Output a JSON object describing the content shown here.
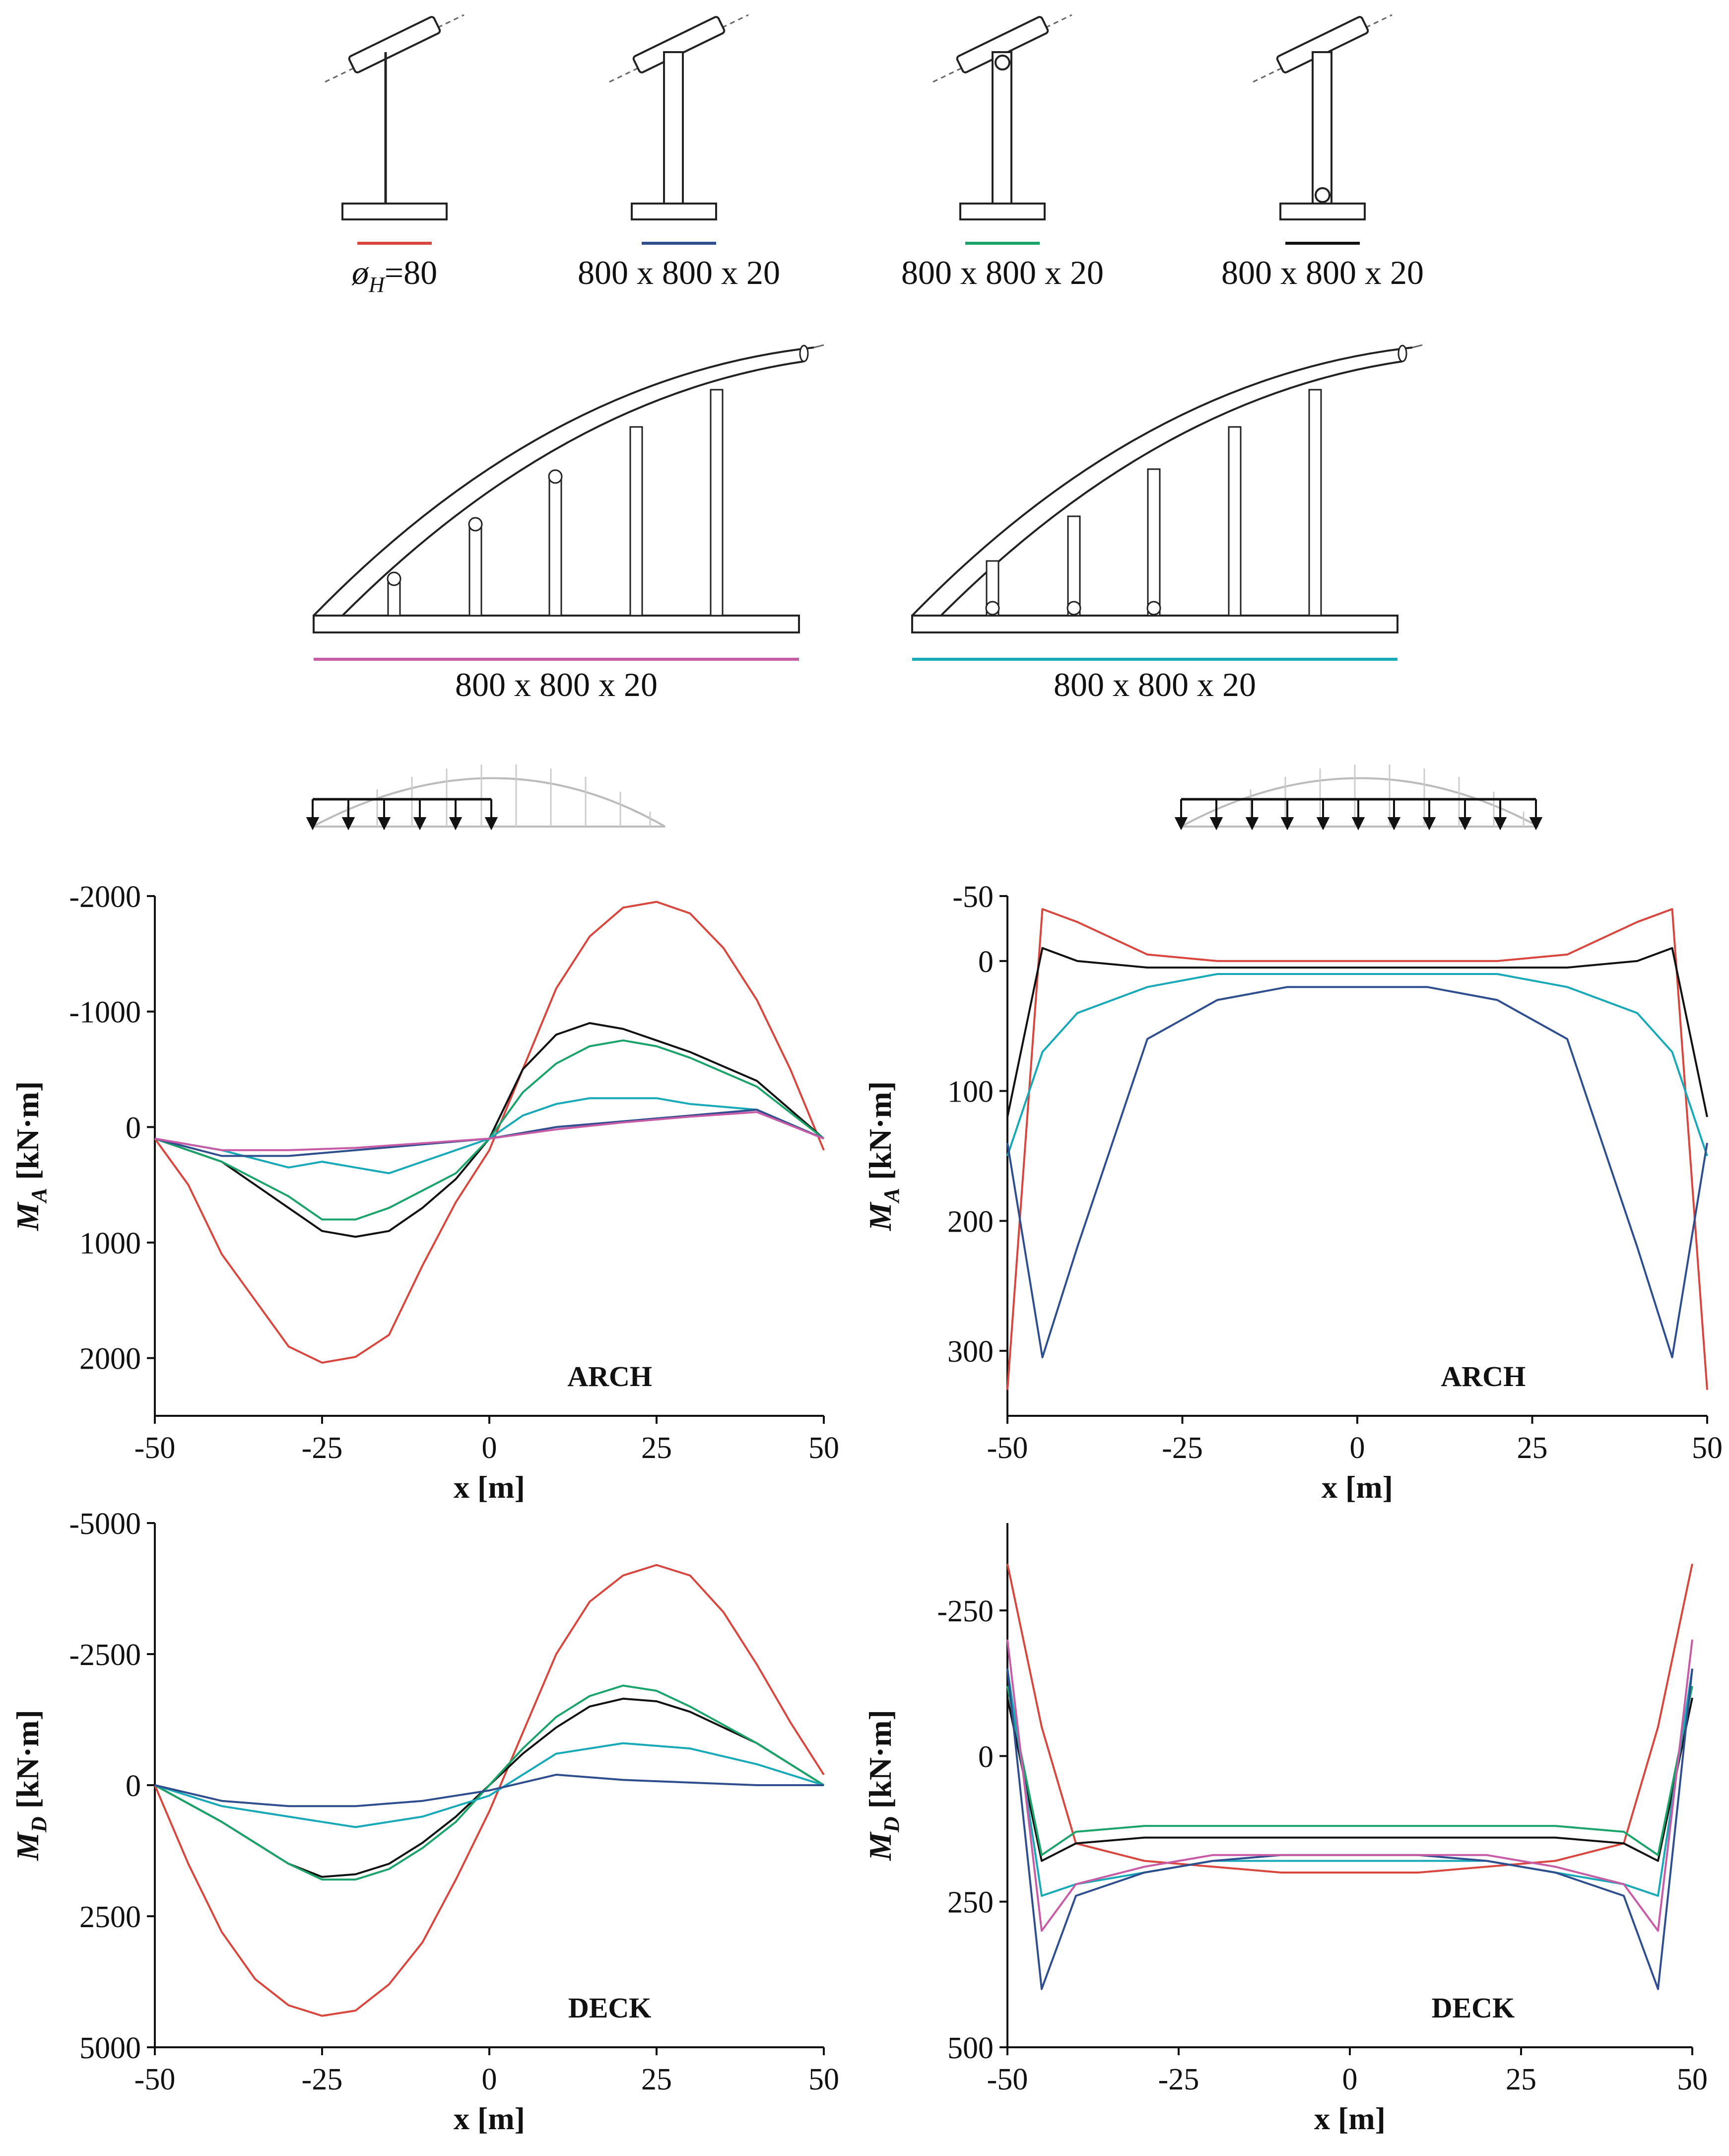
{
  "figure": {
    "configs": [
      {
        "id": "red",
        "label": "ø_H=80",
        "sub_prefix": "ø",
        "sub_letter": "H",
        "sub_rest": "=80",
        "color": "#d9463e"
      },
      {
        "id": "navy",
        "label": "800 x 800 x 20",
        "color": "#2e4e8f"
      },
      {
        "id": "green",
        "label": "800 x 800 x 20",
        "color": "#1aa36a"
      },
      {
        "id": "black",
        "label": "800 x 800 x 20",
        "color": "#111111"
      },
      {
        "id": "magenta",
        "label": "800 x 800 x 20",
        "color": "#c75ba6"
      },
      {
        "id": "cyan",
        "label": "800 x 800 x 20",
        "color": "#18a9b8"
      }
    ],
    "load_left_label": "",
    "load_right_label": ""
  },
  "chart_data": [
    {
      "type": "line",
      "panel": "top-left",
      "title": "ARCH",
      "xlabel": "x [m]",
      "ylabel_main": "M",
      "ylabel_sub": "A",
      "ylabel_units": " [kN·m]",
      "xlim": [
        -50,
        50
      ],
      "ylim": [
        -2000,
        2500
      ],
      "y_inverted": true,
      "xticks": [
        -50,
        -25,
        0,
        25,
        50
      ],
      "yticks": [
        -2000,
        -1000,
        0,
        1000,
        2000
      ],
      "series": [
        {
          "name": "red",
          "x": [
            -50,
            -45,
            -40,
            -35,
            -30,
            -25,
            -20,
            -15,
            -10,
            -5,
            0,
            5,
            10,
            15,
            20,
            25,
            30,
            35,
            40,
            45,
            50
          ],
          "y": [
            100,
            500,
            1100,
            1500,
            1900,
            2040,
            1990,
            1800,
            1200,
            650,
            200,
            -500,
            -1200,
            -1650,
            -1900,
            -1950,
            -1850,
            -1550,
            -1100,
            -500,
            200
          ]
        },
        {
          "name": "black",
          "x": [
            -50,
            -40,
            -30,
            -25,
            -20,
            -15,
            -10,
            -5,
            0,
            5,
            10,
            15,
            20,
            25,
            30,
            40,
            50
          ],
          "y": [
            100,
            300,
            700,
            900,
            950,
            900,
            700,
            450,
            100,
            -500,
            -800,
            -900,
            -850,
            -750,
            -650,
            -400,
            100
          ]
        },
        {
          "name": "green",
          "x": [
            -50,
            -40,
            -30,
            -25,
            -20,
            -15,
            -10,
            -5,
            0,
            5,
            10,
            15,
            20,
            25,
            30,
            40,
            50
          ],
          "y": [
            100,
            300,
            600,
            800,
            800,
            700,
            550,
            400,
            100,
            -300,
            -550,
            -700,
            -750,
            -700,
            -600,
            -350,
            100
          ]
        },
        {
          "name": "cyan",
          "x": [
            -50,
            -40,
            -30,
            -25,
            -20,
            -15,
            -10,
            -5,
            0,
            5,
            10,
            15,
            20,
            25,
            30,
            40,
            50
          ],
          "y": [
            100,
            200,
            350,
            300,
            350,
            400,
            300,
            200,
            100,
            -100,
            -200,
            -250,
            -250,
            -250,
            -200,
            -150,
            100
          ]
        },
        {
          "name": "navy",
          "x": [
            -50,
            -40,
            -30,
            -20,
            -10,
            0,
            10,
            20,
            30,
            40,
            50
          ],
          "y": [
            100,
            250,
            250,
            200,
            150,
            100,
            0,
            -50,
            -100,
            -150,
            100
          ]
        },
        {
          "name": "magenta",
          "x": [
            -50,
            -40,
            -30,
            -20,
            -10,
            0,
            10,
            20,
            30,
            40,
            50
          ],
          "y": [
            100,
            200,
            200,
            180,
            140,
            100,
            20,
            -40,
            -90,
            -130,
            100
          ]
        }
      ]
    },
    {
      "type": "line",
      "panel": "top-right",
      "title": "ARCH",
      "xlabel": "x [m]",
      "ylabel_main": "M",
      "ylabel_sub": "A",
      "ylabel_units": " [kN·m]",
      "xlim": [
        -50,
        50
      ],
      "ylim": [
        -50,
        350
      ],
      "y_inverted": true,
      "xticks": [
        -50,
        -25,
        0,
        25,
        50
      ],
      "yticks": [
        -50,
        0,
        100,
        200,
        300
      ],
      "series": [
        {
          "name": "red",
          "x": [
            -50,
            -45,
            -40,
            -30,
            -20,
            -10,
            0,
            10,
            20,
            30,
            40,
            45,
            50
          ],
          "y": [
            330,
            -40,
            -30,
            -5,
            0,
            0,
            0,
            0,
            0,
            -5,
            -30,
            -40,
            330
          ]
        },
        {
          "name": "cyan",
          "x": [
            -50,
            -45,
            -40,
            -30,
            -20,
            -10,
            0,
            10,
            20,
            30,
            40,
            45,
            50
          ],
          "y": [
            150,
            70,
            40,
            20,
            10,
            10,
            10,
            10,
            10,
            20,
            40,
            70,
            150
          ]
        },
        {
          "name": "black",
          "x": [
            -50,
            -45,
            -40,
            -30,
            -20,
            -10,
            0,
            10,
            20,
            30,
            40,
            45,
            50
          ],
          "y": [
            120,
            -10,
            0,
            5,
            5,
            5,
            5,
            5,
            5,
            5,
            0,
            -10,
            120
          ]
        },
        {
          "name": "navy",
          "x": [
            -50,
            -45,
            -40,
            -30,
            -20,
            -10,
            0,
            10,
            20,
            30,
            40,
            45,
            50
          ],
          "y": [
            140,
            305,
            220,
            60,
            30,
            20,
            20,
            20,
            30,
            60,
            220,
            305,
            140
          ]
        }
      ]
    },
    {
      "type": "line",
      "panel": "bottom-left",
      "title": "DECK",
      "xlabel": "x [m]",
      "ylabel_main": "M",
      "ylabel_sub": "D",
      "ylabel_units": " [kN·m]",
      "xlim": [
        -50,
        50
      ],
      "ylim": [
        -5000,
        5000
      ],
      "y_inverted": true,
      "xticks": [
        -50,
        -25,
        0,
        25,
        50
      ],
      "yticks": [
        -5000,
        -2500,
        0,
        2500,
        5000
      ],
      "series": [
        {
          "name": "red",
          "x": [
            -50,
            -45,
            -40,
            -35,
            -30,
            -25,
            -20,
            -15,
            -10,
            -5,
            0,
            5,
            10,
            15,
            20,
            25,
            30,
            35,
            40,
            45,
            50
          ],
          "y": [
            0,
            1500,
            2800,
            3700,
            4200,
            4400,
            4300,
            3800,
            3000,
            1800,
            500,
            -1000,
            -2500,
            -3500,
            -4000,
            -4200,
            -4000,
            -3300,
            -2300,
            -1200,
            -200
          ]
        },
        {
          "name": "black",
          "x": [
            -50,
            -40,
            -30,
            -25,
            -20,
            -15,
            -10,
            -5,
            0,
            5,
            10,
            15,
            20,
            25,
            30,
            40,
            50
          ],
          "y": [
            0,
            700,
            1500,
            1750,
            1700,
            1500,
            1100,
            600,
            0,
            -600,
            -1100,
            -1500,
            -1650,
            -1600,
            -1400,
            -800,
            0
          ]
        },
        {
          "name": "green",
          "x": [
            -50,
            -40,
            -30,
            -25,
            -20,
            -15,
            -10,
            -5,
            0,
            5,
            10,
            15,
            20,
            25,
            30,
            40,
            50
          ],
          "y": [
            0,
            700,
            1500,
            1800,
            1800,
            1600,
            1200,
            700,
            0,
            -700,
            -1300,
            -1700,
            -1900,
            -1800,
            -1500,
            -800,
            0
          ]
        },
        {
          "name": "cyan",
          "x": [
            -50,
            -40,
            -30,
            -20,
            -10,
            0,
            10,
            20,
            30,
            40,
            50
          ],
          "y": [
            0,
            400,
            600,
            800,
            600,
            200,
            -600,
            -800,
            -700,
            -400,
            0
          ]
        },
        {
          "name": "navy",
          "x": [
            -50,
            -40,
            -30,
            -20,
            -10,
            0,
            10,
            20,
            30,
            40,
            50
          ],
          "y": [
            0,
            300,
            400,
            400,
            300,
            100,
            -200,
            -100,
            -50,
            0,
            0
          ]
        }
      ]
    },
    {
      "type": "line",
      "panel": "bottom-right",
      "title": "DECK",
      "xlabel": "x [m]",
      "ylabel_main": "M",
      "ylabel_sub": "D",
      "ylabel_units": " [kN·m]",
      "xlim": [
        -50,
        50
      ],
      "ylim": [
        -400,
        500
      ],
      "y_inverted": true,
      "xticks": [
        -50,
        -25,
        0,
        25,
        50
      ],
      "yticks": [
        -250,
        0,
        250,
        500
      ],
      "series": [
        {
          "name": "red",
          "x": [
            -50,
            -45,
            -40,
            -30,
            -20,
            -10,
            0,
            10,
            20,
            30,
            40,
            45,
            50
          ],
          "y": [
            -330,
            -50,
            150,
            180,
            190,
            200,
            200,
            200,
            190,
            180,
            150,
            -50,
            -330
          ]
        },
        {
          "name": "black",
          "x": [
            -50,
            -45,
            -40,
            -30,
            -20,
            -10,
            0,
            10,
            20,
            30,
            40,
            45,
            50
          ],
          "y": [
            -100,
            180,
            150,
            140,
            140,
            140,
            140,
            140,
            140,
            140,
            150,
            180,
            -100
          ]
        },
        {
          "name": "green",
          "x": [
            -50,
            -45,
            -40,
            -30,
            -20,
            -10,
            0,
            10,
            20,
            30,
            40,
            45,
            50
          ],
          "y": [
            -120,
            170,
            130,
            120,
            120,
            120,
            120,
            120,
            120,
            120,
            130,
            170,
            -120
          ]
        },
        {
          "name": "cyan",
          "x": [
            -50,
            -45,
            -40,
            -30,
            -20,
            -10,
            0,
            10,
            20,
            30,
            40,
            45,
            50
          ],
          "y": [
            -150,
            240,
            220,
            200,
            180,
            180,
            180,
            180,
            180,
            200,
            220,
            240,
            -150
          ]
        },
        {
          "name": "navy",
          "x": [
            -50,
            -45,
            -40,
            -30,
            -20,
            -10,
            0,
            10,
            20,
            30,
            40,
            45,
            50
          ],
          "y": [
            -150,
            400,
            240,
            200,
            180,
            170,
            170,
            170,
            180,
            200,
            240,
            400,
            -150
          ]
        },
        {
          "name": "magenta",
          "x": [
            -50,
            -45,
            -40,
            -30,
            -20,
            -10,
            0,
            10,
            20,
            30,
            40,
            45,
            50
          ],
          "y": [
            -200,
            300,
            220,
            190,
            170,
            170,
            170,
            170,
            170,
            190,
            220,
            300,
            -200
          ]
        }
      ]
    }
  ]
}
